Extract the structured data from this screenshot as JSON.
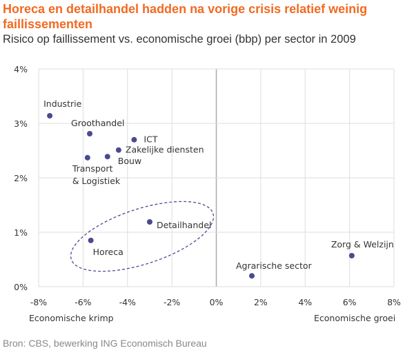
{
  "chart_data": {
    "type": "scatter",
    "title": "Horeca en detailhandel hadden na vorige crisis relatief weinig faillissementen",
    "subtitle": "Risico op faillissement vs. economische groei (bbp) per sector in 2009",
    "xlabel_left": "Economische krimp",
    "xlabel_right": "Economische groei",
    "xlim": [
      -8,
      8
    ],
    "ylim": [
      0,
      4
    ],
    "x_ticks": [
      "-8%",
      "-6%",
      "-4%",
      "-2%",
      "0%",
      "2%",
      "4%",
      "6%",
      "8%"
    ],
    "y_ticks": [
      "0%",
      "1%",
      "2%",
      "3%",
      "4%"
    ],
    "grid": true,
    "points": [
      {
        "label": "Industrie",
        "x": -7.5,
        "y": 3.14
      },
      {
        "label": "Groothandel",
        "x": -5.7,
        "y": 2.81
      },
      {
        "label": "ICT",
        "x": -3.7,
        "y": 2.7
      },
      {
        "label": "Zakelijke diensten",
        "x": -4.4,
        "y": 2.51
      },
      {
        "label": "Bouw",
        "x": -4.9,
        "y": 2.39
      },
      {
        "label": "Transport & Logistiek",
        "x": -5.8,
        "y": 2.37
      },
      {
        "label": "Detailhandel",
        "x": -3.0,
        "y": 1.19
      },
      {
        "label": "Horeca",
        "x": -5.65,
        "y": 0.85
      },
      {
        "label": "Agrarische sector",
        "x": 1.6,
        "y": 0.2
      },
      {
        "label": "Zorg & Welzijn",
        "x": 6.1,
        "y": 0.57
      }
    ],
    "annotation": "dashed ellipse around Horeca and Detailhandel"
  },
  "source": "Bron: CBS, bewerking ING Economisch Bureau",
  "colors": {
    "title": "#f26a21",
    "points": "#4b4a8f",
    "grid": "#dddddd",
    "zero_line": "#aaaaaa"
  }
}
